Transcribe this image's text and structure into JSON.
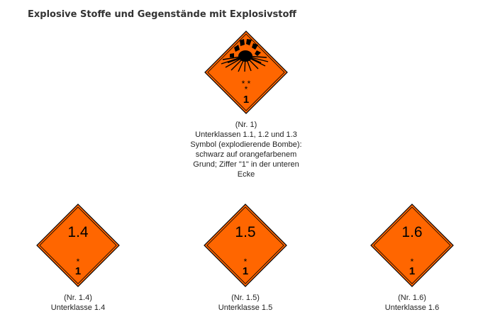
{
  "title": "Explosive Stoffe und Gegenstände mit Explosivstoff",
  "colors": {
    "placard_fill": "#ff6600",
    "placard_border": "#000000"
  },
  "top_label": {
    "icon": "exploding-bomb-icon",
    "stars": "* *",
    "star_single": "*",
    "digit": "1",
    "caption": [
      "(Nr. 1)",
      "Unterklassen 1.1, 1.2 und 1.3",
      "Symbol (explodierende Bombe):",
      "schwarz auf orangefarbenem",
      "Grund; Ziffer \"1\" in der unteren",
      "Ecke"
    ]
  },
  "labels": [
    {
      "number": "1.4",
      "star": "*",
      "digit": "1",
      "caption_nr": "(Nr. 1.4)",
      "caption_sub": "Unterklasse 1.4"
    },
    {
      "number": "1.5",
      "star": "*",
      "digit": "1",
      "caption_nr": "(Nr. 1.5)",
      "caption_sub": "Unterklasse 1.5"
    },
    {
      "number": "1.6",
      "star": "*",
      "digit": "1",
      "caption_nr": "(Nr. 1.6)",
      "caption_sub": "Unterklasse 1.6"
    }
  ]
}
